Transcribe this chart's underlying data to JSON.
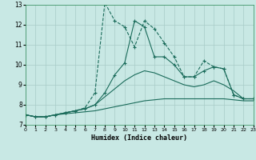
{
  "xlabel": "Humidex (Indice chaleur)",
  "x": [
    0,
    1,
    2,
    3,
    4,
    5,
    6,
    7,
    8,
    9,
    10,
    11,
    12,
    13,
    14,
    15,
    16,
    17,
    18,
    19,
    20,
    21,
    22,
    23
  ],
  "line1": [
    7.5,
    7.4,
    7.4,
    7.5,
    7.6,
    7.7,
    7.85,
    8.6,
    13.1,
    12.2,
    11.9,
    10.9,
    12.2,
    11.8,
    11.1,
    10.4,
    9.4,
    9.4,
    10.2,
    9.9,
    9.8,
    8.5,
    8.3,
    8.3
  ],
  "line2": [
    7.5,
    7.4,
    7.4,
    7.5,
    7.6,
    7.7,
    7.8,
    8.0,
    8.6,
    9.5,
    10.1,
    12.2,
    11.9,
    10.4,
    10.4,
    10.0,
    9.4,
    9.4,
    9.7,
    9.9,
    9.8,
    8.5,
    8.3,
    8.3
  ],
  "line3": [
    7.5,
    7.4,
    7.4,
    7.5,
    7.6,
    7.7,
    7.8,
    8.0,
    8.4,
    8.8,
    9.2,
    9.5,
    9.7,
    9.6,
    9.4,
    9.2,
    9.0,
    8.9,
    9.0,
    9.2,
    9.0,
    8.7,
    8.3,
    8.3
  ],
  "line4": [
    7.5,
    7.4,
    7.4,
    7.5,
    7.55,
    7.6,
    7.65,
    7.7,
    7.8,
    7.9,
    8.0,
    8.1,
    8.2,
    8.25,
    8.3,
    8.3,
    8.3,
    8.3,
    8.3,
    8.3,
    8.3,
    8.25,
    8.2,
    8.2
  ],
  "color": "#1a6b5a",
  "bg_color": "#c8e8e4",
  "grid_color": "#a8ccc8",
  "ylim": [
    7,
    13
  ],
  "xlim": [
    0,
    23
  ],
  "yticks": [
    7,
    8,
    9,
    10,
    11,
    12,
    13
  ],
  "xticks": [
    0,
    1,
    2,
    3,
    4,
    5,
    6,
    7,
    8,
    9,
    10,
    11,
    12,
    13,
    14,
    15,
    16,
    17,
    18,
    19,
    20,
    21,
    22,
    23
  ]
}
